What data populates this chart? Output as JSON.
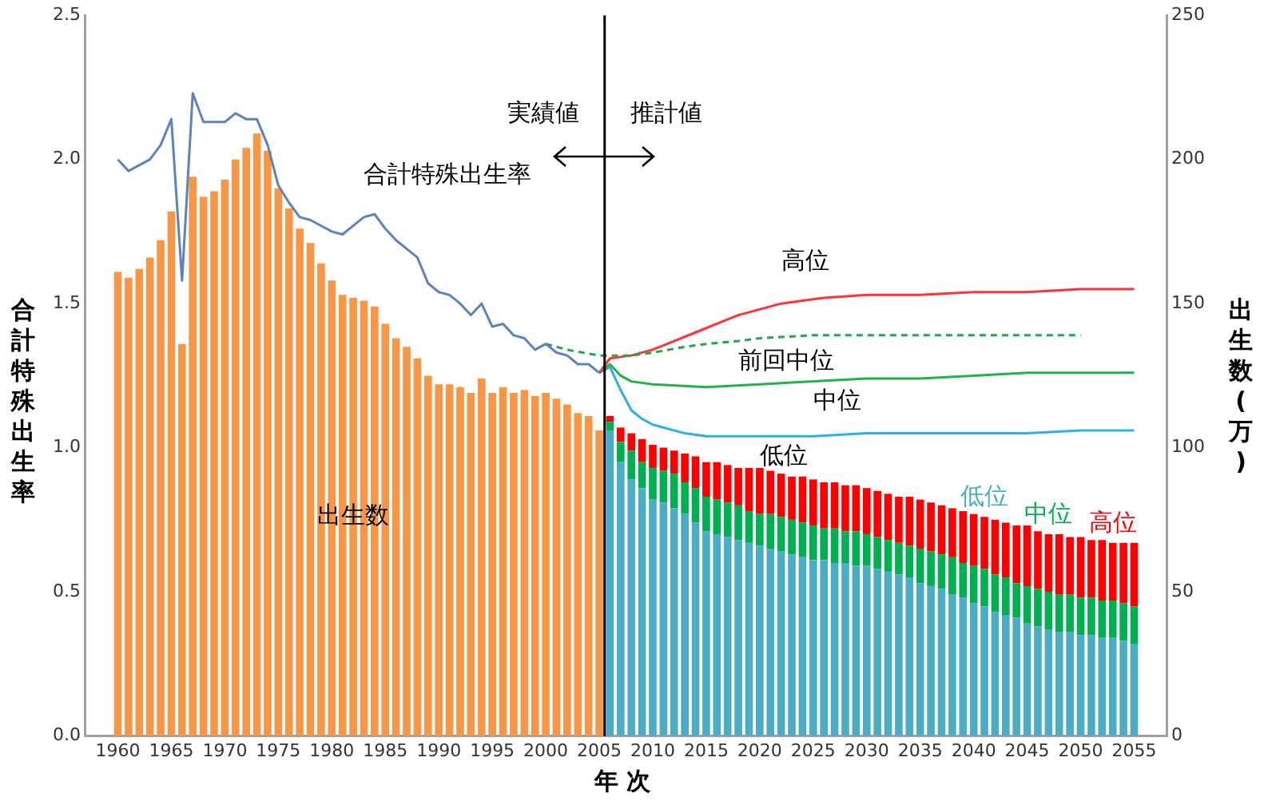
{
  "chart_data": {
    "type": "bar",
    "stacked": true,
    "xlabel": "年 次",
    "ylabel": "合計特殊出生率",
    "y2label": "出生数(万)",
    "x": [
      1960,
      1961,
      1962,
      1963,
      1964,
      1965,
      1966,
      1967,
      1968,
      1969,
      1970,
      1971,
      1972,
      1973,
      1974,
      1975,
      1976,
      1977,
      1978,
      1979,
      1980,
      1981,
      1982,
      1983,
      1984,
      1985,
      1986,
      1987,
      1988,
      1989,
      1990,
      1991,
      1992,
      1993,
      1994,
      1995,
      1996,
      1997,
      1998,
      1999,
      2000,
      2001,
      2002,
      2003,
      2004,
      2005,
      2006,
      2007,
      2008,
      2009,
      2010,
      2011,
      2012,
      2013,
      2014,
      2015,
      2016,
      2017,
      2018,
      2019,
      2020,
      2021,
      2022,
      2023,
      2024,
      2025,
      2026,
      2027,
      2028,
      2029,
      2030,
      2031,
      2032,
      2033,
      2034,
      2035,
      2036,
      2037,
      2038,
      2039,
      2040,
      2041,
      2042,
      2043,
      2044,
      2045,
      2046,
      2047,
      2048,
      2049,
      2050,
      2051,
      2052,
      2053,
      2054,
      2055
    ],
    "xlim": [
      1959.5,
      2055.5
    ],
    "xticks": [
      1960,
      1965,
      1970,
      1975,
      1980,
      1985,
      1990,
      1995,
      2000,
      2005,
      2010,
      2015,
      2020,
      2025,
      2030,
      2035,
      2040,
      2045,
      2050,
      2055
    ],
    "ylim": [
      0,
      2.5
    ],
    "yticks": [
      {
        "value": 0,
        "label": "0.0"
      },
      {
        "value": 0.5,
        "label": "0.5"
      },
      {
        "value": 1,
        "label": "1.0"
      },
      {
        "value": 1.5,
        "label": "1.5"
      },
      {
        "value": 2,
        "label": "2.0"
      },
      {
        "value": 2.5,
        "label": "2.5"
      }
    ],
    "y2lim": [
      0,
      250
    ],
    "y2ticks": [
      0,
      50,
      100,
      150,
      200,
      250
    ],
    "grid": false,
    "legend": false,
    "ref_lines": [
      {
        "axis": "x",
        "value": 2005.5,
        "color": "#000000"
      }
    ],
    "annotations": [
      "実績値",
      "推計値"
    ],
    "series": [
      {
        "name": "出生数",
        "axis": "y2",
        "color": "#f79646",
        "values": [
          161,
          159,
          162,
          166,
          172,
          182,
          136,
          194,
          187,
          189,
          193,
          200,
          204,
          209,
          203,
          190,
          183,
          176,
          171,
          164,
          158,
          153,
          152,
          151,
          149,
          143,
          138,
          135,
          131,
          125,
          122,
          122,
          121,
          119,
          124,
          119,
          121,
          119,
          120,
          118,
          119,
          117,
          115,
          112,
          111,
          106,
          null,
          null,
          null,
          null,
          null,
          null,
          null,
          null,
          null,
          null,
          null,
          null,
          null,
          null,
          null,
          null,
          null,
          null,
          null,
          null,
          null,
          null,
          null,
          null,
          null,
          null,
          null,
          null,
          null,
          null,
          null,
          null,
          null,
          null,
          null,
          null,
          null,
          null,
          null,
          null,
          null,
          null,
          null,
          null,
          null,
          null,
          null,
          null,
          null,
          null
        ]
      },
      {
        "name": "低位",
        "axis": "y2",
        "color": "#4bacc6",
        "values": [
          null,
          null,
          null,
          null,
          null,
          null,
          null,
          null,
          null,
          null,
          null,
          null,
          null,
          null,
          null,
          null,
          null,
          null,
          null,
          null,
          null,
          null,
          null,
          null,
          null,
          null,
          null,
          null,
          null,
          null,
          null,
          null,
          null,
          null,
          null,
          null,
          null,
          null,
          null,
          null,
          null,
          null,
          null,
          null,
          null,
          null,
          106,
          95,
          89,
          86,
          82,
          81,
          79,
          77,
          74,
          71,
          70,
          69,
          68,
          67,
          66,
          65,
          64,
          63,
          62,
          61,
          61,
          60,
          60,
          59,
          59,
          58,
          57,
          56,
          55,
          53,
          52,
          51,
          49,
          48,
          46,
          45,
          43,
          42,
          41,
          39,
          38,
          37,
          36,
          36,
          35,
          35,
          34,
          34,
          33,
          32
        ]
      },
      {
        "name": "中位",
        "axis": "y2",
        "color": "#00b050",
        "values": [
          null,
          null,
          null,
          null,
          null,
          null,
          null,
          null,
          null,
          null,
          null,
          null,
          null,
          null,
          null,
          null,
          null,
          null,
          null,
          null,
          null,
          null,
          null,
          null,
          null,
          null,
          null,
          null,
          null,
          null,
          null,
          null,
          null,
          null,
          null,
          null,
          null,
          null,
          null,
          null,
          null,
          null,
          null,
          null,
          null,
          null,
          3,
          7,
          10,
          9,
          11,
          11,
          12,
          11,
          12,
          12,
          12,
          12,
          12,
          11,
          11,
          12,
          12,
          12,
          12,
          12,
          11,
          12,
          11,
          12,
          11,
          11,
          11,
          11,
          11,
          12,
          12,
          12,
          13,
          12,
          13,
          13,
          13,
          13,
          12,
          13,
          13,
          13,
          13,
          13,
          13,
          13,
          13,
          13,
          13,
          13
        ]
      },
      {
        "name": "高位",
        "axis": "y2",
        "color": "#ff0000",
        "values": [
          null,
          null,
          null,
          null,
          null,
          null,
          null,
          null,
          null,
          null,
          null,
          null,
          null,
          null,
          null,
          null,
          null,
          null,
          null,
          null,
          null,
          null,
          null,
          null,
          null,
          null,
          null,
          null,
          null,
          null,
          null,
          null,
          null,
          null,
          null,
          null,
          null,
          null,
          null,
          null,
          null,
          null,
          null,
          null,
          null,
          null,
          2,
          5,
          6,
          8,
          8,
          8,
          8,
          10,
          11,
          12,
          13,
          13,
          13,
          15,
          16,
          15,
          15,
          15,
          16,
          16,
          16,
          16,
          16,
          16,
          16,
          16,
          16,
          16,
          17,
          17,
          17,
          17,
          17,
          18,
          18,
          18,
          19,
          19,
          20,
          21,
          20,
          20,
          21,
          20,
          21,
          20,
          21,
          20,
          21,
          22
        ]
      },
      {
        "name": "合計特殊出生率",
        "type": "line",
        "color": "#5b84be",
        "x": [
          1960,
          1961,
          1962,
          1963,
          1964,
          1965,
          1966,
          1967,
          1968,
          1969,
          1970,
          1971,
          1972,
          1973,
          1974,
          1975,
          1976,
          1977,
          1978,
          1979,
          1980,
          1981,
          1982,
          1983,
          1984,
          1985,
          1986,
          1987,
          1988,
          1989,
          1990,
          1991,
          1992,
          1993,
          1994,
          1995,
          1996,
          1997,
          1998,
          1999,
          2000,
          2001,
          2002,
          2003,
          2004,
          2005
        ],
        "values": [
          2.0,
          1.96,
          1.98,
          2.0,
          2.05,
          2.14,
          1.58,
          2.23,
          2.13,
          2.13,
          2.13,
          2.16,
          2.14,
          2.14,
          2.05,
          1.91,
          1.85,
          1.8,
          1.79,
          1.77,
          1.75,
          1.74,
          1.77,
          1.8,
          1.81,
          1.76,
          1.72,
          1.69,
          1.66,
          1.57,
          1.54,
          1.53,
          1.5,
          1.46,
          1.5,
          1.42,
          1.43,
          1.39,
          1.38,
          1.34,
          1.36,
          1.33,
          1.32,
          1.29,
          1.29,
          1.26
        ]
      },
      {
        "name": "前回中位",
        "type": "line",
        "color": "#1fa84a",
        "line_style": "dashed",
        "x": [
          2000,
          2002,
          2005,
          2008,
          2010,
          2013,
          2015,
          2018,
          2020,
          2025,
          2030,
          2035,
          2040,
          2045,
          2050
        ],
        "values": [
          1.36,
          1.34,
          1.32,
          1.32,
          1.33,
          1.35,
          1.36,
          1.37,
          1.38,
          1.39,
          1.39,
          1.39,
          1.39,
          1.39,
          1.39
        ]
      },
      {
        "name": "高位",
        "type": "line",
        "color": "#ff3333",
        "x": [
          2005,
          2006,
          2008,
          2010,
          2012,
          2014,
          2016,
          2018,
          2020,
          2022,
          2024,
          2026,
          2030,
          2035,
          2040,
          2045,
          2050,
          2055
        ],
        "values": [
          1.26,
          1.31,
          1.32,
          1.34,
          1.37,
          1.4,
          1.43,
          1.46,
          1.48,
          1.5,
          1.51,
          1.52,
          1.53,
          1.53,
          1.54,
          1.54,
          1.55,
          1.55
        ]
      },
      {
        "name": "中位",
        "type": "line",
        "color": "#22b14c",
        "x": [
          2005,
          2006,
          2007,
          2008,
          2010,
          2015,
          2020,
          2025,
          2030,
          2035,
          2040,
          2045,
          2050,
          2055
        ],
        "values": [
          1.26,
          1.29,
          1.25,
          1.23,
          1.22,
          1.21,
          1.22,
          1.23,
          1.24,
          1.24,
          1.25,
          1.26,
          1.26,
          1.26
        ]
      },
      {
        "name": "低位",
        "type": "line",
        "color": "#2ab0ea",
        "x": [
          2005,
          2006,
          2007,
          2008,
          2009,
          2010,
          2013,
          2015,
          2020,
          2025,
          2030,
          2035,
          2040,
          2045,
          2050,
          2055
        ],
        "values": [
          1.26,
          1.28,
          1.2,
          1.13,
          1.1,
          1.08,
          1.05,
          1.04,
          1.04,
          1.04,
          1.05,
          1.05,
          1.05,
          1.05,
          1.06,
          1.06
        ]
      }
    ]
  }
}
